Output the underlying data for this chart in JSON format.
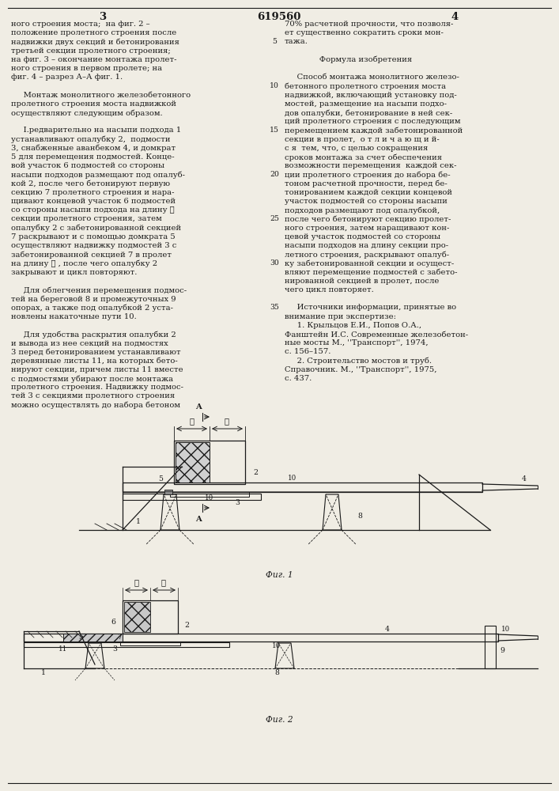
{
  "patent_number": "619560",
  "page_left": "3",
  "page_right": "4",
  "bg_color": "#f0ede4",
  "text_color": "#1a1a1a",
  "font_size_body": 7.2,
  "font_size_header": 9.5,
  "left_column_text": [
    "ного строения моста;  на фиг. 2 –",
    "положение пролетного строения после",
    "надвижки двух секций и бетонирования",
    "третьей секции пролетного строения;",
    "на фиг. 3 – окончание монтажа пролет-",
    "ного строения в первом пролете; на",
    "фиг. 4 – разрез А–А фиг. 1.",
    "",
    "     Монтаж монолитного железобетонного",
    "пролетного строения моста надвижкой",
    "осуществляют следующим образом.",
    "",
    "     I.редварительно на насыпи подхода 1",
    "устанавливают опалубку 2,  подмости",
    "3, снабженные аванбеком 4, и домкрат",
    "5 для перемещения подмостей. Конце-",
    "вой участок 6 подмостей со стороны",
    "насыпи подходов размещают под опалуб-",
    "кой 2, после чего бетонируют первую",
    "секцию 7 пролетного строения и нара-",
    "щивают концевой участок 6 подмостей",
    "со стороны насыпи подхода на длину ℓ",
    "секции пролетного строения, затем",
    "опалубку 2 с забетонированной секцией",
    "7 раскрывают и с помощью домкрата 5",
    "осуществляют надвижку подмостей 3 с",
    "забетонированной секцией 7 в пролет",
    "на длину ℓ , после чего опалубку 2",
    "закрывают и цикл повторяют.",
    "",
    "     Для облегчения перемещения подмос-",
    "тей на береговой 8 и промежуточных 9",
    "опорах, а также под опалубкой 2 уста-",
    "новлены накаточные пути 10.",
    "",
    "     Для удобства раскрытия опалубки 2",
    "и вывода из нее секций на подмостях",
    "3 перед бетонированием устанавливают",
    "деревянные листы 11, на которых бето-",
    "нируют секции, причем листы 11 вместе",
    "с подмостями убирают после монтажа",
    "пролетного строения. Надвижку подмос-",
    "тей 3 с секциями пролетного строения",
    "можно осуществлять до набора бетоном"
  ],
  "right_column_text": [
    "70% расчетной прочности, что позволя-",
    "ет существенно сократить сроки мон-",
    "тажа.",
    "",
    "              Формула изобретения",
    "",
    "     Способ монтажа монолитного железо-",
    "бетонного пролетного строения моста",
    "надвижкой, включающий установку под-",
    "мостей, размещение на насыпи подхо-",
    "дов опалубки, бетонирование в ней сек-",
    "ций пролетного строения с последующим",
    "перемещением каждой забетонированной",
    "секции в пролет,  о т л и ч а ю щ и й-",
    "с я  тем, что, с целью сокращения",
    "сроков монтажа за счет обеспечения",
    "возможности перемещения  каждой сек-",
    "ции пролетного строения до набора бе-",
    "тоном расчетной прочности, перед бе-",
    "тонированием каждой секции концевой",
    "участок подмостей со стороны насыпи",
    "подходов размещают под опалубкой,",
    "после чего бетонируют секцию пролет-",
    "ного строения, затем наращивают кон-",
    "цевой участок подмостей со стороны",
    "насыпи подходов на длину секции про-",
    "летного строения, раскрывают опалуб-",
    "ку забетонированной секции и осущест-",
    "вляют перемещение подмостей с забето-",
    "нированной секцией в пролет, после",
    "чего цикл повторяет.",
    "",
    "     Источники информации, принятые во",
    "внимание при экспертизе:",
    "     1. Крыльцов Е.И., Попов О.А.,",
    "Фанштейн И.С. Современные железобетон-",
    "ные мосты М., ''Транспорт'', 1974,",
    "с. 156–157.",
    "     2. Строительство мостов и труб.",
    "Справочник. М., ''Транспорт'', 1975,",
    "с. 437."
  ],
  "line_numbers": [
    5,
    10,
    15,
    20,
    25,
    30,
    35
  ],
  "line_numbers_right_line": [
    2,
    7,
    12,
    17,
    22,
    27,
    32
  ]
}
